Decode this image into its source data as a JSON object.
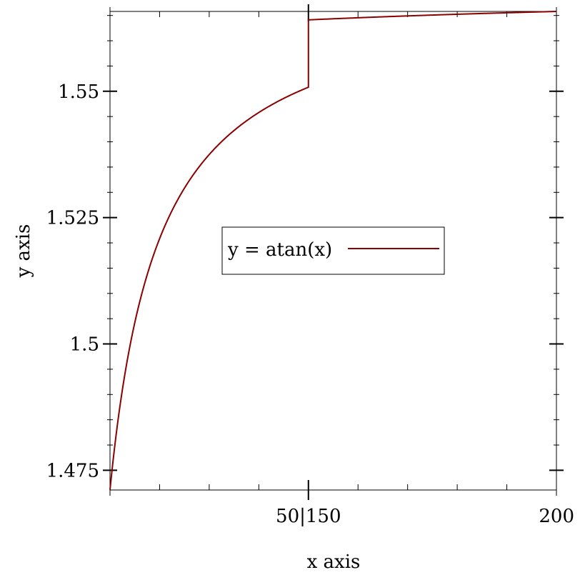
{
  "chart_data": {
    "type": "line",
    "xlabel": "x axis",
    "ylabel": "y axis",
    "x_axis": {
      "segments": [
        {
          "domain": [
            10,
            50
          ],
          "ticks": [
            20,
            30,
            40,
            50
          ]
        },
        {
          "domain": [
            150,
            200
          ],
          "ticks": [
            160,
            170,
            180,
            190,
            200
          ]
        }
      ],
      "tick_labels": [
        {
          "value": 50,
          "text": "50|150"
        },
        {
          "value": 200,
          "text": "200"
        }
      ]
    },
    "ylim": [
      1.4711,
      1.5658
    ],
    "y_ticks_major": [
      1.475,
      1.5,
      1.525,
      1.55
    ],
    "y_tick_labels": [
      "1.475",
      "1.5",
      "1.525",
      "1.55"
    ],
    "y_ticks_minor_step": 0.005,
    "function": "atan",
    "series": [
      {
        "name": "y = atan(x)",
        "color": "#8b0000"
      }
    ],
    "legend": {
      "placement": "center",
      "label": "y = atan(x)"
    }
  }
}
